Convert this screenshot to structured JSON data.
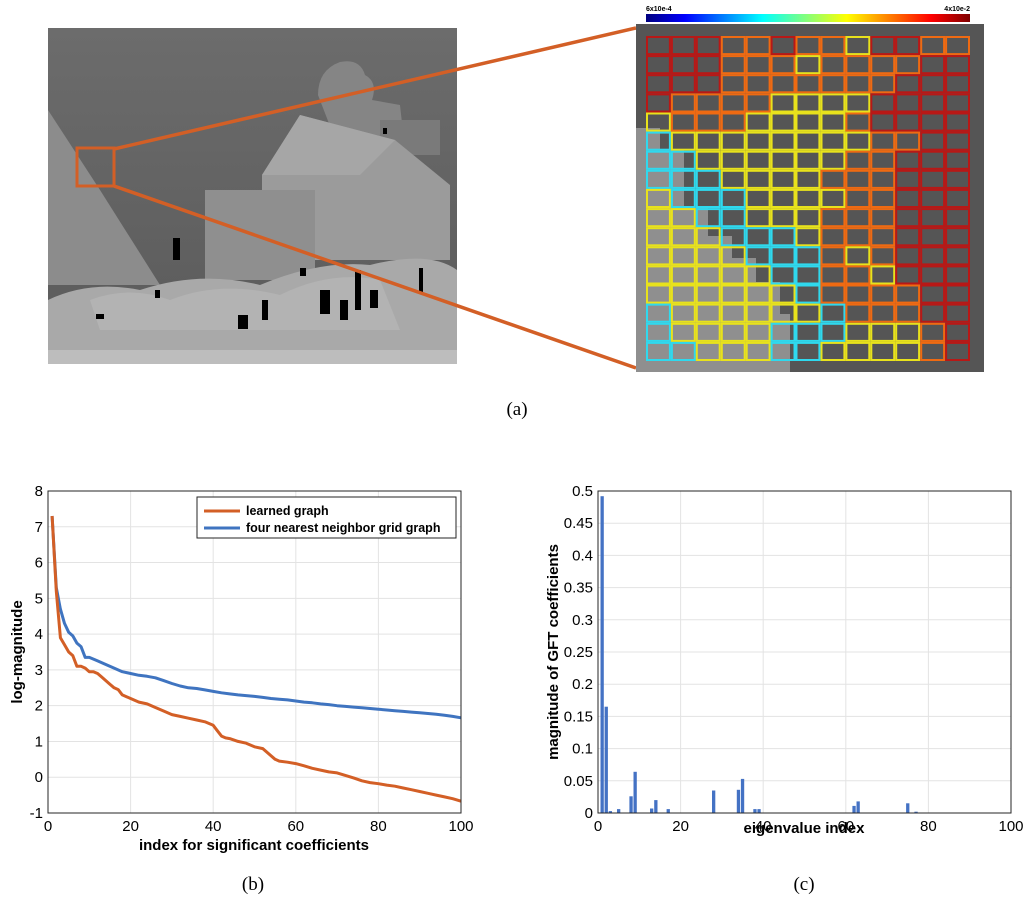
{
  "panel_a": {
    "caption": "(a)",
    "colorbar": {
      "min_label": "6x10e-4",
      "max_label": "4x10e-2"
    },
    "grid_rows": [
      "4443343324433",
      "4443332333344",
      "4443333333444",
      "4333322224444",
      "2333222234444",
      "1222222223344",
      "1122222233444",
      "1112222333444",
      "2111222233444",
      "2211222333444",
      "2221112333444",
      "2222111323444",
      "2222211332444",
      "2222221333344",
      "1222222133344",
      "1222211122234",
      "1122211222234"
    ],
    "grid_colors": [
      "#1515c8",
      "#2fd9ee",
      "#e8e21c",
      "#ef6a12",
      "#b81816"
    ]
  },
  "chart_data": [
    {
      "type": "line",
      "caption": "(b)",
      "xlabel": "index for significant coefficients",
      "ylabel": "log-magnitude",
      "xlim": [
        0,
        100
      ],
      "ylim": [
        -1,
        8
      ],
      "xticks": [
        0,
        20,
        40,
        60,
        80,
        100
      ],
      "yticks": [
        -1,
        0,
        1,
        2,
        3,
        4,
        5,
        6,
        7,
        8
      ],
      "grid": true,
      "legend_position": "top-right",
      "series": [
        {
          "name": "learned graph",
          "color": "#d35f26",
          "x": [
            1,
            2,
            3,
            4,
            5,
            6,
            7,
            8,
            9,
            10,
            11,
            12,
            13,
            14,
            15,
            16,
            17,
            18,
            19,
            20,
            22,
            24,
            26,
            28,
            30,
            32,
            34,
            36,
            38,
            40,
            41,
            42,
            43,
            44,
            46,
            48,
            50,
            52,
            54,
            55,
            56,
            58,
            60,
            62,
            64,
            66,
            68,
            70,
            72,
            74,
            76,
            78,
            80,
            82,
            84,
            86,
            88,
            90,
            92,
            94,
            96,
            98,
            100
          ],
          "y": [
            7.3,
            5.2,
            3.9,
            3.7,
            3.5,
            3.4,
            3.1,
            3.1,
            3.05,
            2.95,
            2.95,
            2.9,
            2.8,
            2.7,
            2.6,
            2.5,
            2.45,
            2.3,
            2.25,
            2.2,
            2.1,
            2.05,
            1.95,
            1.85,
            1.75,
            1.7,
            1.65,
            1.6,
            1.55,
            1.45,
            1.3,
            1.15,
            1.1,
            1.08,
            1.0,
            0.95,
            0.85,
            0.8,
            0.6,
            0.5,
            0.45,
            0.42,
            0.38,
            0.32,
            0.25,
            0.2,
            0.15,
            0.12,
            0.05,
            -0.02,
            -0.1,
            -0.15,
            -0.18,
            -0.22,
            -0.25,
            -0.3,
            -0.35,
            -0.4,
            -0.45,
            -0.5,
            -0.55,
            -0.6,
            -0.67
          ]
        },
        {
          "name": "four nearest neighbor grid graph",
          "color": "#3f74c0",
          "x": [
            1,
            2,
            3,
            4,
            5,
            6,
            7,
            8,
            9,
            10,
            12,
            14,
            16,
            18,
            20,
            22,
            24,
            26,
            28,
            30,
            32,
            34,
            36,
            38,
            40,
            42,
            44,
            46,
            48,
            50,
            52,
            54,
            56,
            58,
            60,
            62,
            64,
            66,
            68,
            70,
            72,
            74,
            76,
            78,
            80,
            82,
            84,
            86,
            88,
            90,
            92,
            94,
            96,
            98,
            100
          ],
          "y": [
            7.3,
            5.3,
            4.7,
            4.3,
            4.05,
            3.95,
            3.75,
            3.65,
            3.35,
            3.35,
            3.25,
            3.15,
            3.05,
            2.95,
            2.9,
            2.85,
            2.82,
            2.78,
            2.7,
            2.62,
            2.55,
            2.5,
            2.48,
            2.44,
            2.4,
            2.36,
            2.33,
            2.3,
            2.28,
            2.26,
            2.23,
            2.2,
            2.18,
            2.16,
            2.13,
            2.1,
            2.08,
            2.05,
            2.03,
            2.0,
            1.98,
            1.96,
            1.94,
            1.92,
            1.9,
            1.88,
            1.86,
            1.84,
            1.82,
            1.8,
            1.78,
            1.76,
            1.73,
            1.7,
            1.66
          ]
        }
      ]
    },
    {
      "type": "bar",
      "caption": "(c)",
      "xlabel": "eigenvalue index",
      "ylabel": "magnitude of GFT coefficients",
      "xlim": [
        0,
        100
      ],
      "ylim": [
        0,
        0.5
      ],
      "xticks": [
        0,
        20,
        40,
        60,
        80,
        100
      ],
      "yticks": [
        0,
        0.05,
        0.1,
        0.15,
        0.2,
        0.25,
        0.3,
        0.35,
        0.4,
        0.45,
        0.5
      ],
      "grid": true,
      "color": "#4472c4",
      "x": [
        1,
        2,
        3,
        5,
        8,
        9,
        13,
        14,
        17,
        28,
        34,
        35,
        38,
        39,
        62,
        63,
        75,
        77
      ],
      "values": [
        0.492,
        0.165,
        0.003,
        0.006,
        0.026,
        0.064,
        0.007,
        0.02,
        0.006,
        0.035,
        0.036,
        0.053,
        0.006,
        0.006,
        0.011,
        0.018,
        0.015,
        0.002
      ]
    }
  ]
}
